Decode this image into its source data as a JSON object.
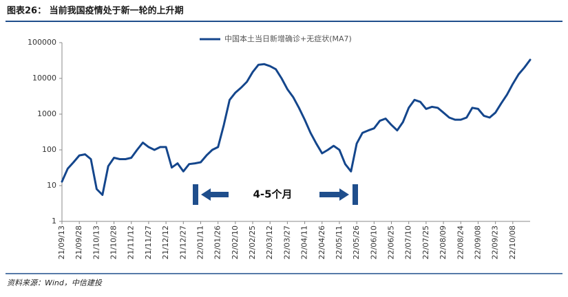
{
  "chart_data": {
    "type": "line",
    "title": "图表26： 当前我国疫情处于新一轮的上升期",
    "source": "资料来源：Wind，中信建投",
    "annotation": "4-5个月",
    "categories": [
      "21/09/13",
      null,
      null,
      "21/09/28",
      null,
      null,
      "21/10/13",
      null,
      null,
      "21/10/28",
      null,
      null,
      "21/11/12",
      null,
      null,
      "21/11/27",
      null,
      null,
      "21/12/12",
      null,
      null,
      "21/12/27",
      null,
      null,
      "22/01/11",
      null,
      null,
      "22/01/26",
      null,
      null,
      "22/02/10",
      null,
      null,
      "22/02/25",
      null,
      null,
      "22/03/12",
      null,
      null,
      "22/03/27",
      null,
      null,
      "22/04/11",
      null,
      null,
      "22/04/26",
      null,
      null,
      "22/05/11",
      null,
      null,
      "22/05/26",
      null,
      null,
      "22/06/10",
      null,
      null,
      "22/06/25",
      null,
      null,
      "22/07/10",
      null,
      null,
      "22/07/25",
      null,
      null,
      "22/08/09",
      null,
      null,
      "22/08/24",
      null,
      null,
      "22/09/08",
      null,
      null,
      "22/09/23",
      null,
      null,
      "22/10/08",
      null,
      null,
      null
    ],
    "series": [
      {
        "name": "中国本土当日新增确诊+无症状(MA7)",
        "color": "#14468c",
        "values": [
          13,
          30,
          45,
          70,
          75,
          55,
          8,
          5.5,
          35,
          60,
          55,
          55,
          60,
          100,
          160,
          120,
          100,
          120,
          120,
          32,
          42,
          25,
          40,
          42,
          45,
          70,
          100,
          120,
          500,
          2500,
          4000,
          5500,
          8000,
          15000,
          24000,
          25000,
          22000,
          18000,
          10000,
          5000,
          3000,
          1500,
          700,
          300,
          150,
          80,
          100,
          130,
          100,
          40,
          25,
          150,
          300,
          350,
          400,
          650,
          750,
          500,
          350,
          600,
          1500,
          2500,
          2200,
          1400,
          1600,
          1500,
          1100,
          800,
          700,
          700,
          800,
          1500,
          1400,
          900,
          800,
          1100,
          2000,
          3500,
          7000,
          13000,
          20000,
          33000
        ]
      }
    ],
    "ylim": [
      1,
      100000
    ],
    "yticks": [
      1,
      10,
      100,
      1000,
      10000,
      100000
    ],
    "log": true,
    "legend": "top"
  }
}
